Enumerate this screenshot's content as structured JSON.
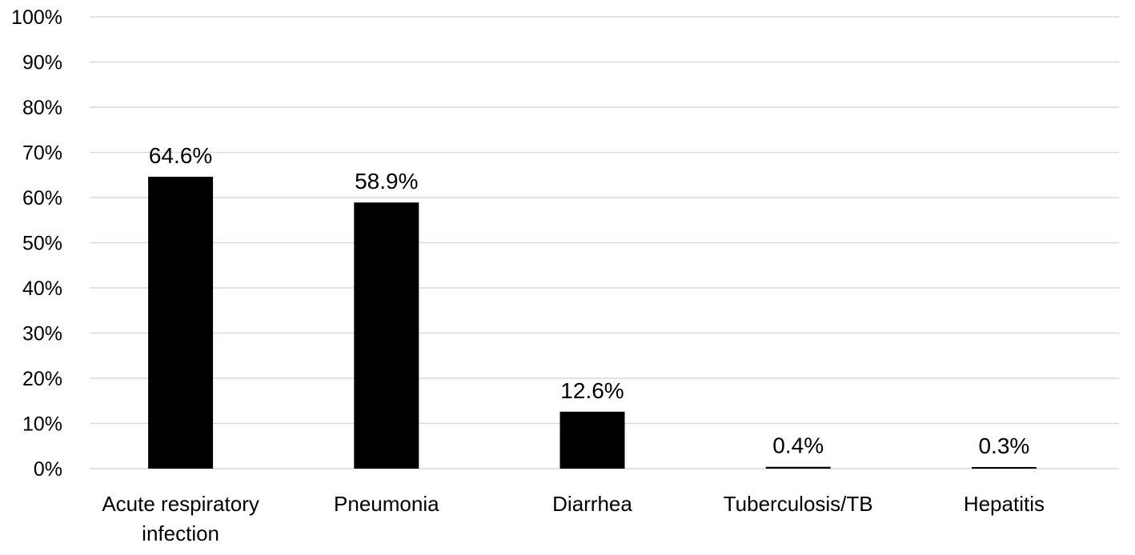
{
  "chart_data": {
    "type": "bar",
    "categories": [
      [
        "Acute respiratory",
        "infection"
      ],
      [
        "Pneumonia"
      ],
      [
        "Diarrhea"
      ],
      [
        "Tuberculosis/TB"
      ],
      [
        "Hepatitis"
      ]
    ],
    "values": [
      64.6,
      58.9,
      12.6,
      0.4,
      0.3
    ],
    "data_labels": [
      "64.6%",
      "58.9%",
      "12.6%",
      "0.4%",
      "0.3%"
    ],
    "ylim": [
      0,
      100
    ],
    "yticks": [
      0,
      10,
      20,
      30,
      40,
      50,
      60,
      70,
      80,
      90,
      100
    ],
    "ytick_labels": [
      "0%",
      "10%",
      "20%",
      "30%",
      "40%",
      "50%",
      "60%",
      "70%",
      "80%",
      "90%",
      "100%"
    ],
    "bar_color": "#000000",
    "grid_color": "#d9d9d9",
    "grid": true,
    "legend": false
  }
}
